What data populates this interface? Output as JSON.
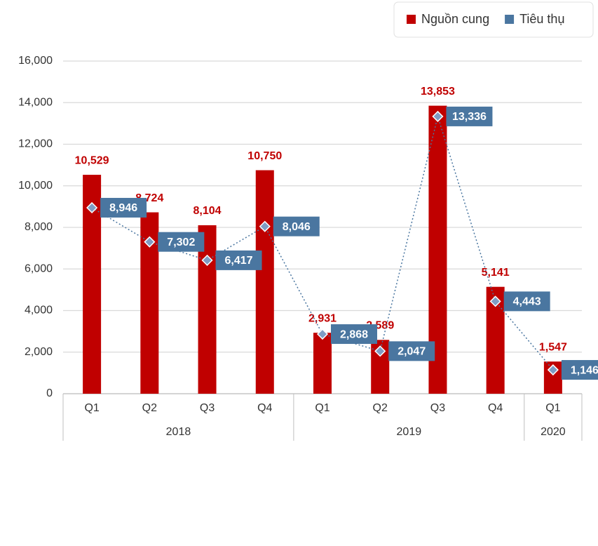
{
  "chart_data": {
    "type": "combo",
    "groups": [
      {
        "name": "2018",
        "categories": [
          "Q1",
          "Q2",
          "Q3",
          "Q4"
        ]
      },
      {
        "name": "2019",
        "categories": [
          "Q1",
          "Q2",
          "Q3",
          "Q4"
        ]
      },
      {
        "name": "2020",
        "categories": [
          "Q1"
        ]
      }
    ],
    "series": [
      {
        "name": "Nguồn cung",
        "type": "bar",
        "color": "#c00000",
        "values": [
          10529,
          8724,
          8104,
          10750,
          2931,
          2589,
          13853,
          5141,
          1547
        ],
        "value_labels": [
          "10,529",
          "8,724",
          "8,104",
          "10,750",
          "2,931",
          "2,589",
          "13,853",
          "5,141",
          "1,547"
        ]
      },
      {
        "name": "Tiêu thụ",
        "type": "line",
        "color": "#4a76a0",
        "values": [
          8946,
          7302,
          6417,
          8046,
          2868,
          2047,
          13336,
          4443,
          1146
        ],
        "value_labels": [
          "8,946",
          "7,302",
          "6,417",
          "8,046",
          "2,868",
          "2,047",
          "13,336",
          "4,443",
          "1,146"
        ]
      }
    ],
    "ylim": [
      0,
      16000
    ],
    "yticks": [
      0,
      {
        "value": 2000,
        "label": "2,000"
      },
      {
        "value": 4000,
        "label": "4,000"
      },
      {
        "value": 6000,
        "label": "6,000"
      },
      {
        "value": 8000,
        "label": "8,000"
      },
      {
        "value": 10000,
        "label": "10,000"
      },
      {
        "value": 12000,
        "label": "12,000"
      },
      {
        "value": 14000,
        "label": "14,000"
      },
      {
        "value": 16000,
        "label": "16,000"
      }
    ],
    "grid": true,
    "legend": "top-right"
  }
}
